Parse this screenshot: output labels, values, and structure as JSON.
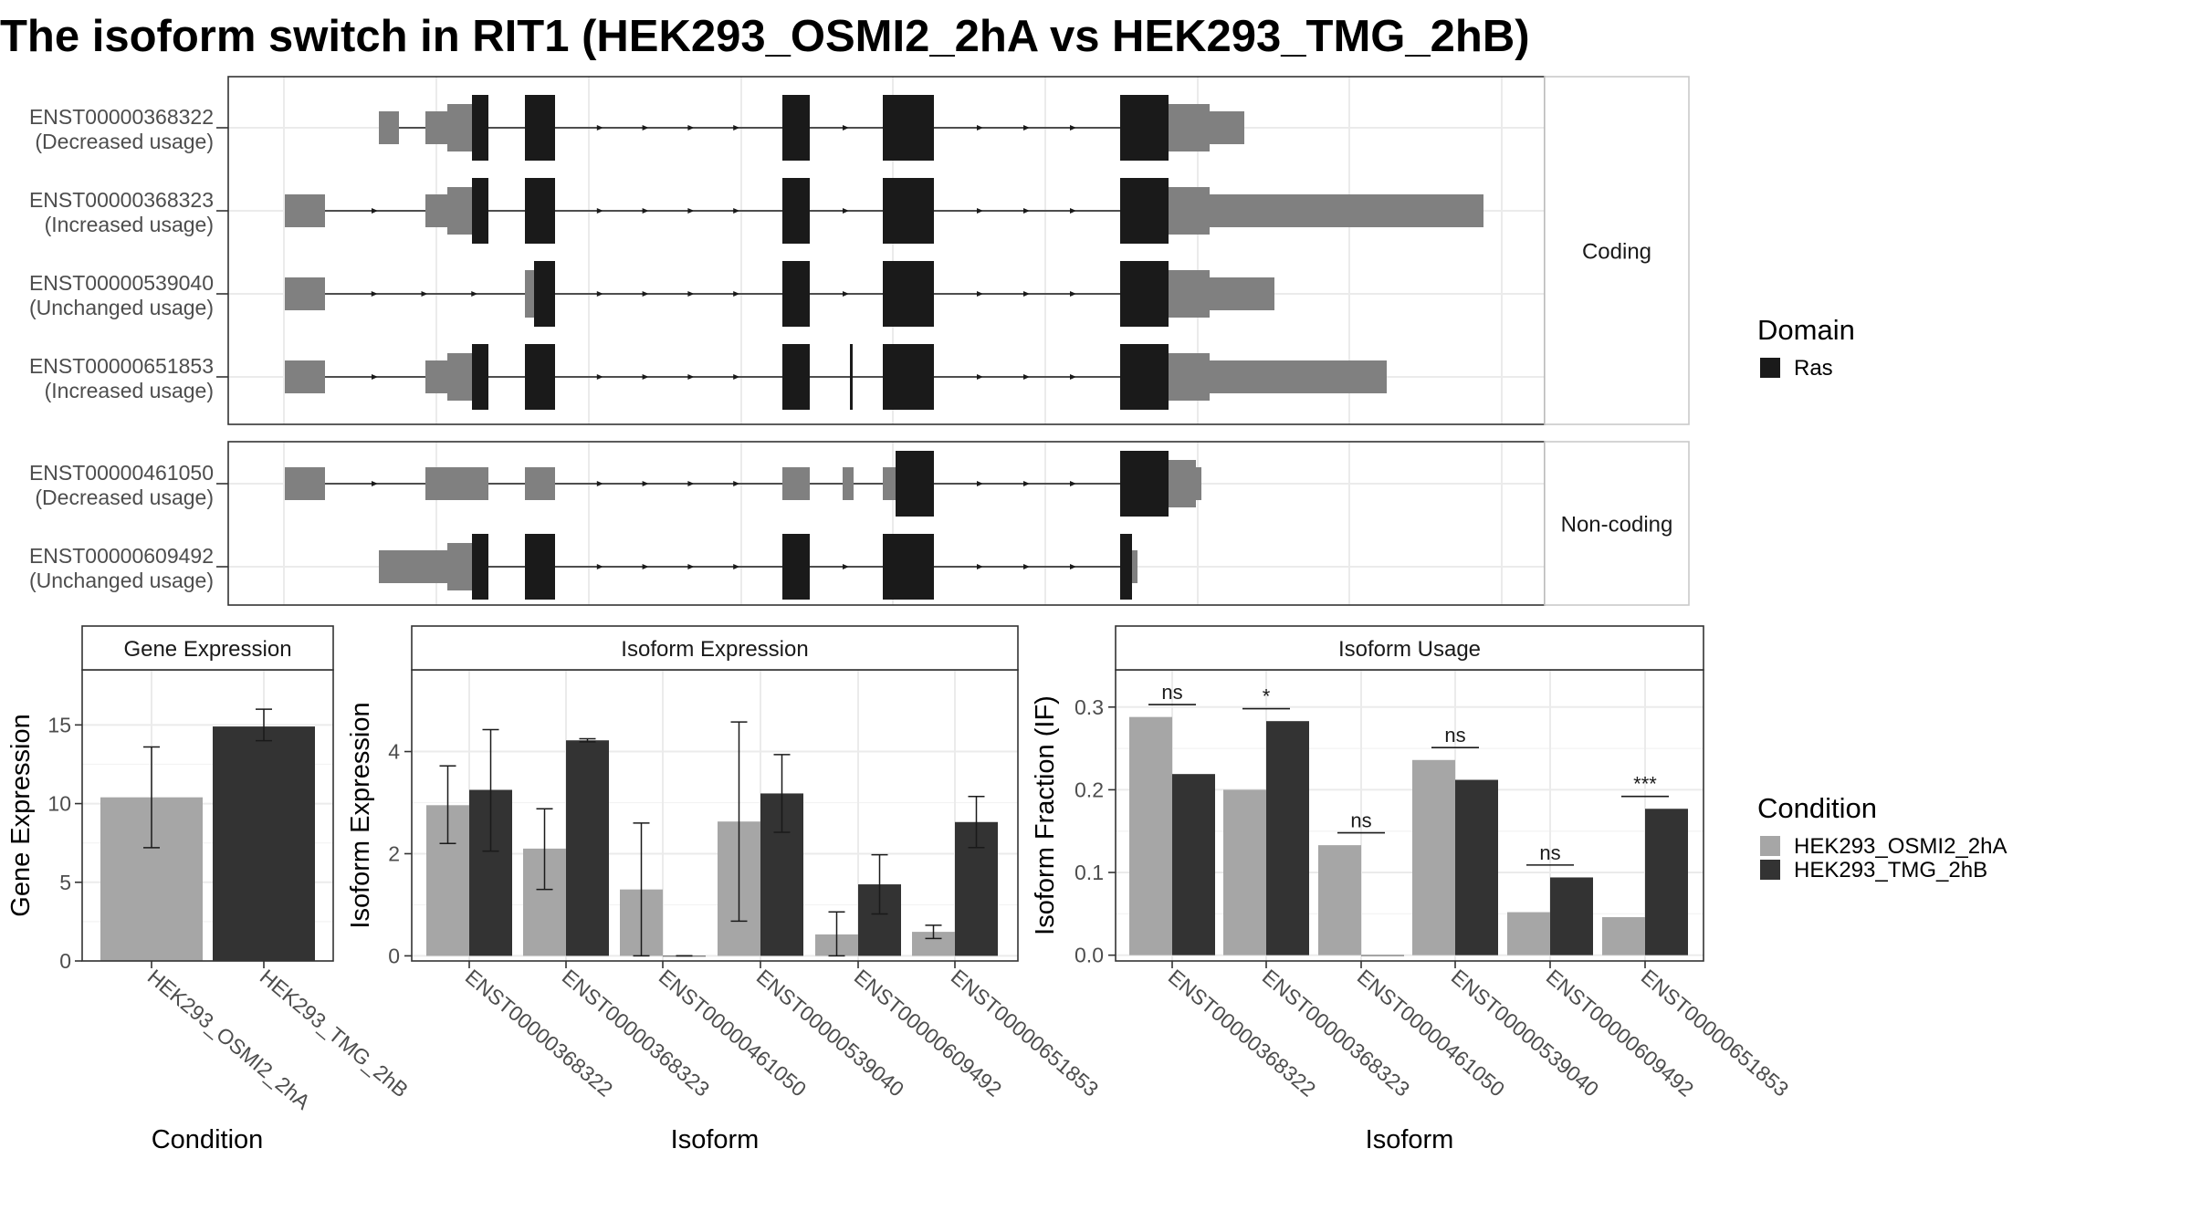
{
  "title": "The isoform switch in RIT1 (HEK293_OSMI2_2hA vs HEK293_TMG_2hB)",
  "structure": {
    "transcripts": [
      {
        "id": "ENST00000368322",
        "status": "(Decreased usage)"
      },
      {
        "id": "ENST00000368323",
        "status": "(Increased usage)"
      },
      {
        "id": "ENST00000539040",
        "status": "(Unchanged usage)"
      },
      {
        "id": "ENST00000651853",
        "status": "(Increased usage)"
      },
      {
        "id": "ENST00000461050",
        "status": "(Decreased usage)"
      },
      {
        "id": "ENST00000609492",
        "status": "(Unchanged usage)"
      }
    ],
    "groups": [
      "Coding",
      "Non-coding"
    ],
    "colors": {
      "domain": "#1a1a1a",
      "utr": "#808080",
      "intron": "#1a1a1a"
    }
  },
  "legend": {
    "domain_title": "Domain",
    "domain_items": [
      {
        "label": "Ras",
        "color": "#1a1a1a"
      }
    ],
    "condition_title": "Condition",
    "condition_items": [
      {
        "label": "HEK293_OSMI2_2hA",
        "color": "#a6a6a6"
      },
      {
        "label": "HEK293_TMG_2hB",
        "color": "#333333"
      }
    ]
  },
  "chart_data": [
    {
      "type": "bar",
      "title": "Gene Expression",
      "xlabel": "Condition",
      "ylabel": "Gene Expression",
      "ylim": [
        0,
        18.5
      ],
      "yticks": [
        0,
        5,
        10,
        15
      ],
      "categories": [
        "HEK293_OSMI2_2hA",
        "HEK293_TMG_2hB"
      ],
      "series": [
        {
          "name": "HEK293_OSMI2_2hA",
          "values": [
            10.4,
            null
          ],
          "err_low": [
            7.2,
            null
          ],
          "err_high": [
            13.6,
            null
          ]
        },
        {
          "name": "HEK293_TMG_2hB",
          "values": [
            null,
            14.9
          ],
          "err_low": [
            null,
            14.0
          ],
          "err_high": [
            null,
            16.0
          ]
        }
      ]
    },
    {
      "type": "bar",
      "title": "Isoform Expression",
      "xlabel": "Isoform",
      "ylabel": "Isoform Expression",
      "ylim": [
        -0.1,
        5.6
      ],
      "yticks": [
        0,
        2,
        4
      ],
      "categories": [
        "ENST00000368322",
        "ENST00000368323",
        "ENST00000461050",
        "ENST00000539040",
        "ENST00000609492",
        "ENST00000651853"
      ],
      "series": [
        {
          "name": "HEK293_OSMI2_2hA",
          "values": [
            2.95,
            2.1,
            1.3,
            2.63,
            0.42,
            0.47
          ],
          "err_low": [
            2.2,
            1.3,
            0.0,
            0.68,
            0.0,
            0.34
          ],
          "err_high": [
            3.72,
            2.88,
            2.6,
            4.58,
            0.86,
            0.6
          ]
        },
        {
          "name": "HEK293_TMG_2hB",
          "values": [
            3.25,
            4.22,
            0.0,
            3.18,
            1.4,
            2.62
          ],
          "err_low": [
            2.05,
            4.19,
            0.0,
            2.42,
            0.82,
            2.12
          ],
          "err_high": [
            4.43,
            4.25,
            0.0,
            3.94,
            1.98,
            3.12
          ]
        }
      ]
    },
    {
      "type": "bar",
      "title": "Isoform Usage",
      "xlabel": "Isoform",
      "ylabel": "Isoform Fraction (IF)",
      "ylim": [
        -0.007,
        0.345
      ],
      "yticks": [
        "0.0",
        "0.1",
        "0.2",
        "0.3"
      ],
      "categories": [
        "ENST00000368322",
        "ENST00000368323",
        "ENST00000461050",
        "ENST00000539040",
        "ENST00000609492",
        "ENST00000651853"
      ],
      "series": [
        {
          "name": "HEK293_OSMI2_2hA",
          "values": [
            0.288,
            0.2,
            0.133,
            0.236,
            0.052,
            0.046
          ]
        },
        {
          "name": "HEK293_TMG_2hB",
          "values": [
            0.219,
            0.283,
            0.0,
            0.212,
            0.094,
            0.177
          ]
        }
      ],
      "annotations": [
        {
          "category": "ENST00000368322",
          "label": "ns",
          "level": 0.303
        },
        {
          "category": "ENST00000368323",
          "label": "*",
          "level": 0.298
        },
        {
          "category": "ENST00000461050",
          "label": "ns",
          "level": 0.148
        },
        {
          "category": "ENST00000539040",
          "label": "ns",
          "level": 0.251
        },
        {
          "category": "ENST00000609492",
          "label": "ns",
          "level": 0.109
        },
        {
          "category": "ENST00000651853",
          "label": "***",
          "level": 0.192
        }
      ]
    }
  ]
}
